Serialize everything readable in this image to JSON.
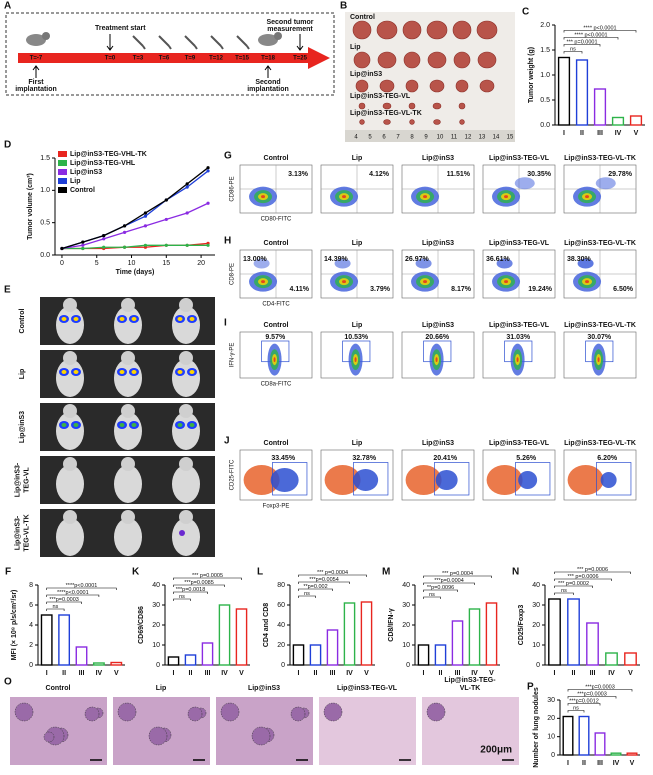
{
  "timeline": {
    "label": "A",
    "ticks": [
      "T=-7",
      "T=0",
      "T=3",
      "T=6",
      "T=9",
      "T=12",
      "T=15",
      "T=18",
      "T=25"
    ],
    "events": [
      {
        "lines": [
          "Treatment start"
        ]
      },
      {
        "lines": [
          "Second tumor",
          "measurement"
        ]
      },
      {
        "lines": [
          "First",
          "implantation"
        ]
      },
      {
        "lines": [
          "Second",
          "implantation"
        ]
      }
    ]
  },
  "photo": {
    "label": "B",
    "rows": [
      "Control",
      "Lip",
      "Lip@inS3",
      "Lip@inS3-TEG-VL",
      "Lip@inS3-TEG-VL-TK"
    ],
    "ruler": [
      "4",
      "5",
      "6",
      "7",
      "8",
      "9",
      "10",
      "11",
      "12",
      "13",
      "14",
      "15"
    ]
  },
  "group_colors": [
    "#000000",
    "#1f3fd8",
    "#8a2be2",
    "#2db34a",
    "#e8251f"
  ],
  "bar_panels": [
    {
      "label": "C",
      "ylabel": "Tumor weight (g)",
      "categories": [
        "I",
        "II",
        "III",
        "IV",
        "V"
      ],
      "values": [
        1.35,
        1.3,
        0.72,
        0.15,
        0.18
      ],
      "ylim": [
        0,
        2
      ],
      "yticks": [
        {
          "value": 0,
          "label": "0.0"
        },
        0.5,
        {
          "value": 1,
          "label": "1.0"
        },
        1.5,
        {
          "value": 2,
          "label": "2.0"
        }
      ],
      "annotations": [
        "ns",
        "*** p=0.0001",
        "**** p<0.0001",
        "**** p<0.0001"
      ]
    },
    {
      "label": "F",
      "ylabel": "MFI (× 10⁸ p/s/cm²/sr)",
      "categories": [
        "I",
        "II",
        "III",
        "IV",
        "V"
      ],
      "values": [
        5,
        5,
        1.8,
        0.2,
        0.25
      ],
      "ylim": [
        0,
        8
      ],
      "yticks": [
        0,
        2,
        4,
        6,
        8
      ],
      "annotations": [
        "ns",
        "***p=0.0003",
        "****p<0.0001",
        "****p<0.0001"
      ]
    },
    {
      "label": "K",
      "ylabel": "CD69/CD86",
      "categories": [
        "I",
        "II",
        "III",
        "IV",
        "V"
      ],
      "values": [
        4,
        5,
        11,
        30,
        28
      ],
      "ylim": [
        0,
        40
      ],
      "yticks": [
        0,
        10,
        20,
        30,
        40
      ],
      "annotations": [
        "ns",
        "***p=0.0018",
        "***p=0.0085",
        "*** p=0.0005"
      ]
    },
    {
      "label": "L",
      "ylabel": "CD4 and CD8",
      "categories": [
        "I",
        "II",
        "III",
        "IV",
        "V"
      ],
      "values": [
        20,
        20,
        35,
        62,
        63
      ],
      "ylim": [
        0,
        80
      ],
      "yticks": [
        0,
        20,
        40,
        60,
        80
      ],
      "annotations": [
        "ns",
        "**p=0.002",
        "***p=0.0054",
        "*** p=0.0004"
      ]
    },
    {
      "label": "M",
      "ylabel": "CD8/IFN-γ",
      "categories": [
        "I",
        "II",
        "III",
        "IV",
        "V"
      ],
      "values": [
        10,
        10,
        22,
        28,
        31
      ],
      "ylim": [
        0,
        40
      ],
      "yticks": [
        0,
        10,
        20,
        30,
        40
      ],
      "annotations": [
        "ns",
        "**p=0.0096",
        "***p=0.0004",
        "*** p=0.0004"
      ]
    },
    {
      "label": "N",
      "ylabel": "CD25/Foxp3",
      "categories": [
        "I",
        "II",
        "III",
        "IV",
        "V"
      ],
      "values": [
        33,
        33,
        21,
        6,
        6
      ],
      "ylim": [
        0,
        40
      ],
      "yticks": [
        0,
        10,
        20,
        30,
        40
      ],
      "annotations": [
        "ns",
        "*** p=0.0002",
        "*** p=0.0006",
        "*** p=0.0006"
      ]
    },
    {
      "label": "P",
      "ylabel": "Number of lung nodules",
      "categories": [
        "I",
        "II",
        "III",
        "IV",
        "V"
      ],
      "values": [
        21,
        21,
        12,
        1,
        1
      ],
      "ylim": [
        0,
        30
      ],
      "yticks": [
        0,
        10,
        20,
        30
      ],
      "annotations": [
        "ns",
        "***p=0.0012",
        "***p=0.0003",
        "***p=0.0003"
      ]
    }
  ],
  "tumor_volume": {
    "label": "D",
    "type": "line",
    "xlabel": "Time (days)",
    "ylabel": "Tumor volume (cm³)",
    "x": [
      0,
      3,
      6,
      9,
      12,
      15,
      18,
      21
    ],
    "xlim": [
      -1,
      22
    ],
    "xticks": [
      0,
      5,
      10,
      15,
      20
    ],
    "ylim": [
      0,
      1.5
    ],
    "yticks": [
      {
        "value": 0,
        "label": "0.0"
      },
      0.5,
      {
        "value": 1,
        "label": "1.0"
      },
      1.5
    ],
    "legend": "upper left",
    "series": [
      {
        "name": "Lip@inS3-TEG-VHL-TK",
        "color": "#e8251f",
        "values": [
          0.1,
          0.1,
          0.1,
          0.12,
          0.12,
          0.15,
          0.15,
          0.18
        ]
      },
      {
        "name": "Lip@inS3-TEG-VHL",
        "color": "#2db34a",
        "values": [
          0.1,
          0.1,
          0.12,
          0.12,
          0.15,
          0.15,
          0.15,
          0.15
        ]
      },
      {
        "name": "Lip@inS3",
        "color": "#8a2be2",
        "values": [
          0.1,
          0.15,
          0.25,
          0.35,
          0.45,
          0.55,
          0.65,
          0.8
        ]
      },
      {
        "name": "Lip",
        "color": "#1f3fd8",
        "values": [
          0.1,
          0.2,
          0.3,
          0.45,
          0.6,
          0.85,
          1.05,
          1.3
        ]
      },
      {
        "name": "Control",
        "color": "#000000",
        "values": [
          0.1,
          0.2,
          0.3,
          0.45,
          0.65,
          0.85,
          1.1,
          1.35
        ]
      }
    ]
  },
  "imaging": {
    "label": "E",
    "rows": [
      [
        "Control"
      ],
      [
        "Lip"
      ],
      [
        "Lip@inS3"
      ],
      [
        "Lip@inS3-",
        "TEG-VL"
      ],
      [
        "Lip@inS3-",
        "TEG-VL-TK"
      ]
    ]
  },
  "flow": {
    "groups": [
      "Control",
      "Lip",
      "Lip@inS3",
      "Lip@inS3-TEG-VL",
      "Lip@inS3-TEG-VL-TK"
    ],
    "rows": [
      {
        "label": "G",
        "y_axis": "CD86-PE",
        "x_axis": "CD80-FITC",
        "values": [
          [
            "3.13%"
          ],
          [
            "4.12%"
          ],
          [
            "11.51%"
          ],
          [
            "30.35%"
          ],
          [
            "29.78%"
          ]
        ]
      },
      {
        "label": "H",
        "y_axis": "CD8-PE",
        "x_axis": "CD4-FITC",
        "values": [
          [
            "13.00%",
            "4.11%"
          ],
          [
            "14.39%",
            "3.79%"
          ],
          [
            "26.97%",
            "8.17%"
          ],
          [
            "36.61%",
            "19.24%"
          ],
          [
            "38.30%",
            "6.50%"
          ]
        ]
      },
      {
        "label": "I",
        "y_axis": "IFN-γ-PE",
        "x_axis": "CD8a-FITC",
        "values": [
          [
            "9.57%"
          ],
          [
            "10.53%"
          ],
          [
            "20.66%"
          ],
          [
            "31.03%"
          ],
          [
            "30.07%"
          ]
        ]
      },
      {
        "label": "J",
        "y_axis": "CD25-FITC",
        "x_axis": "Foxp3-PE",
        "values": [
          [
            "33.45%"
          ],
          [
            "32.78%"
          ],
          [
            "20.41%"
          ],
          [
            "5.26%"
          ],
          [
            "6.20%"
          ]
        ]
      }
    ]
  },
  "histology": {
    "label": "O",
    "titles": [
      [
        "Control"
      ],
      [
        "Lip"
      ],
      [
        "Lip@inS3"
      ],
      [
        "Lip@inS3-TEG-VL"
      ],
      [
        "Lip@inS3-TEG-",
        "VL-TK"
      ]
    ],
    "scale": "200μm"
  }
}
